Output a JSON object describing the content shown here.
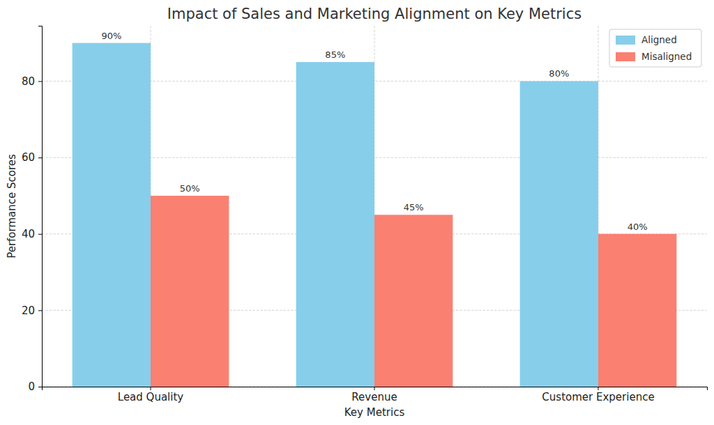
{
  "chart_data": {
    "type": "bar",
    "title": "Impact of Sales and Marketing Alignment on Key Metrics",
    "x_label": "Key Metrics",
    "y_label": "Performance Scores",
    "categories": [
      "Lead Quality",
      "Revenue",
      "Customer Experience"
    ],
    "series": [
      {
        "name": "Aligned",
        "color": "#87ceeb",
        "values": [
          90,
          85,
          80
        ],
        "value_labels": [
          "90%",
          "85%",
          "80%"
        ]
      },
      {
        "name": "Misaligned",
        "color": "#fa8072",
        "values": [
          50,
          45,
          40
        ],
        "value_labels": [
          "50%",
          "45%",
          "40%"
        ]
      }
    ],
    "ylim": [
      0,
      94.5
    ],
    "yticks": [
      0,
      20,
      40,
      60,
      80
    ],
    "grid": true,
    "legend": "upper right",
    "data_labels": true
  }
}
